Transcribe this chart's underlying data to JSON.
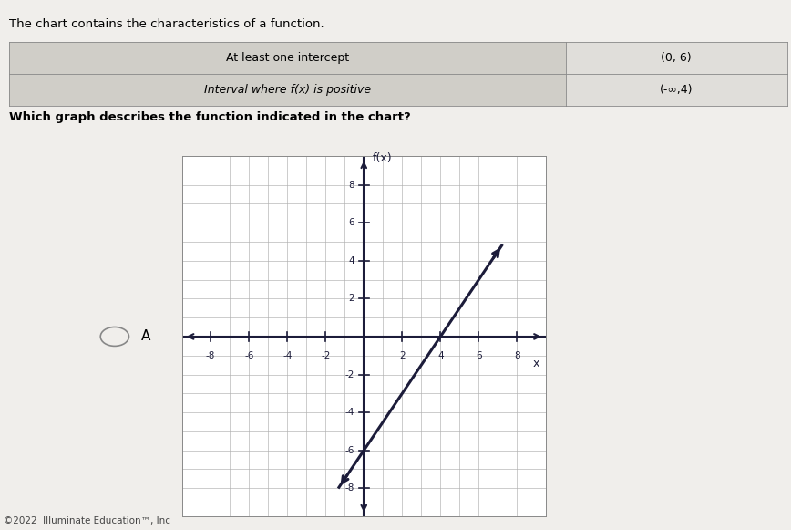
{
  "title_text": "The chart contains the characteristics of a function.",
  "table_rows": [
    [
      "At least one intercept",
      "(0, 6)"
    ],
    [
      "Interval where f(x) is positive",
      "(-∞,4)"
    ]
  ],
  "question_text": "Which graph describes the function indicated in the chart?",
  "option_label": "A",
  "xlabel": "x",
  "ylabel": "f(x)",
  "x_ticks": [
    -8,
    -6,
    -4,
    -2,
    2,
    4,
    6,
    8
  ],
  "y_ticks": [
    -8,
    -6,
    -4,
    -2,
    2,
    4,
    6,
    8
  ],
  "xlim": [
    -9.5,
    9.5
  ],
  "ylim": [
    -9.5,
    9.5
  ],
  "line_slope": 1.5,
  "line_intercept": -6,
  "line_x_start": -1.3,
  "line_x_end": 7.2,
  "line_color": "#1c1c3a",
  "line_width": 2.2,
  "grid_color": "#b0b0b0",
  "axis_color": "#1c1c3a",
  "page_bg": "#f0eeeb",
  "plot_bg": "#ffffff",
  "table_left_bg": "#d0cec8",
  "table_right_bg": "#e0deda",
  "footer_text": "©2022  Illuminate Education™, Inc"
}
